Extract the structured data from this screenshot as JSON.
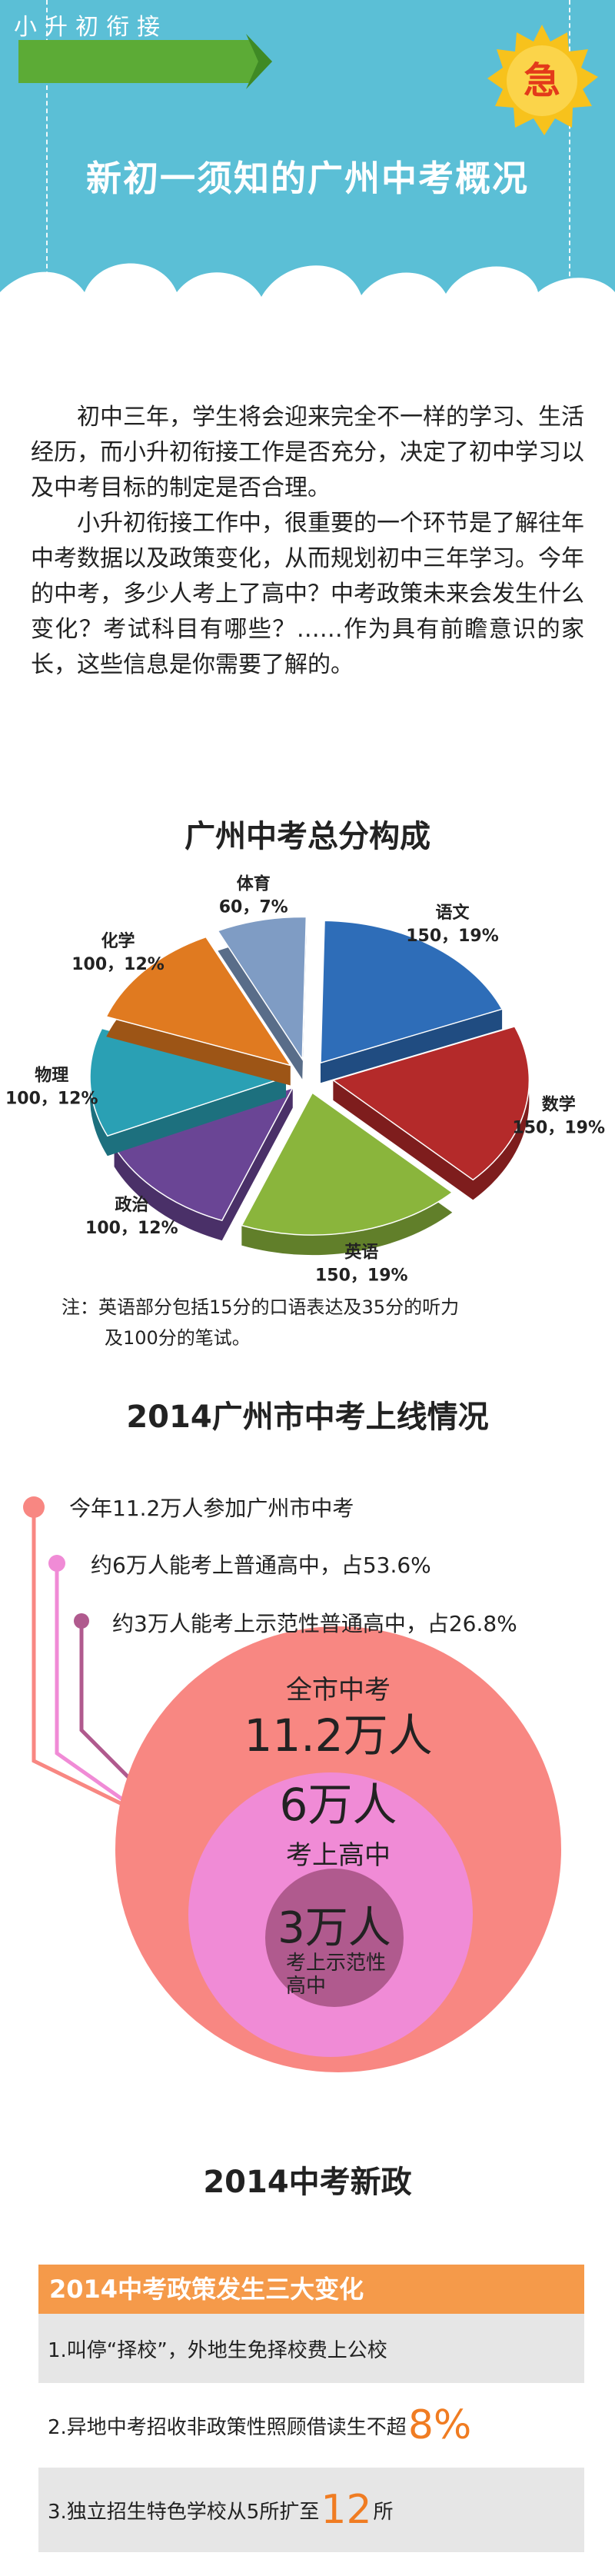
{
  "header": {
    "ribbon": "小升初衔接",
    "urgent": "急",
    "title": "新初一须知的广州中考概况"
  },
  "intro": {
    "p1": "初中三年，学生将会迎来完全不一样的学习、生活经历，而小升初衔接工作是否充分，决定了初中学习以及中考目标的制定是否合理。",
    "p2": "小升初衔接工作中，很重要的一个环节是了解往年中考数据以及政策变化，从而规划初中三年学习。今年的中考，多少人考上了高中？中考政策未来会发生什么变化？考试科目有哪些？……作为具有前瞻意识的家长，这些信息是你需要了解的。"
  },
  "pie_section": {
    "title": "广州中考总分构成",
    "note_line1": "注：英语部分包括15分的口语表达及35分的听力",
    "note_line2": "及100分的笔试。"
  },
  "chart_data": {
    "type": "pie",
    "title": "广州中考总分构成",
    "slices": [
      {
        "name": "语文",
        "value": 150,
        "percent": "19%",
        "label": "150，19%",
        "color": "#2e6db8"
      },
      {
        "name": "数学",
        "value": 150,
        "percent": "19%",
        "label": "150，19%",
        "color": "#b42a2a"
      },
      {
        "name": "英语",
        "value": 150,
        "percent": "19%",
        "label": "150，19%",
        "color": "#8ab53c"
      },
      {
        "name": "政治",
        "value": 100,
        "percent": "12%",
        "label": "100，12%",
        "color": "#6a4595"
      },
      {
        "name": "物理",
        "value": 100,
        "percent": "12%",
        "label": "100，12%",
        "color": "#2aa0b4"
      },
      {
        "name": "化学",
        "value": 100,
        "percent": "12%",
        "label": "100，12%",
        "color": "#e07a20"
      },
      {
        "name": "体育",
        "value": 60,
        "percent": "7%",
        "label": "60，7%",
        "color": "#7f9cc4"
      }
    ]
  },
  "exam2014": {
    "title": "2014广州市中考上线情况",
    "b1": "今年11.2万人参加广州市中考",
    "b2": "约6万人能考上普通高中，占53.6%",
    "b3": "约3万人能考上示范性普通高中，占26.8%",
    "outer_label": "全市中考",
    "outer_value": "11.2万人",
    "mid_value": "6万人",
    "mid_label": "考上高中",
    "inner_value": "3万人",
    "inner_label_1": "考上示范性",
    "inner_label_2": "高中",
    "colors": {
      "outer": "#f88782",
      "mid": "#f08bd6",
      "inner": "#b05a8e"
    }
  },
  "policy": {
    "title": "2014中考新政",
    "head": "2014中考政策发生三大变化",
    "row1": "1.叫停“择校”，外地生免择校费上公校",
    "row2_pre": "2.异地中考招收非政策性照顾借读生不超",
    "row2_big": "8%",
    "row3_pre": "3.独立招生特色学校从5所扩至",
    "row3_big": "12",
    "row3_post": "所"
  }
}
